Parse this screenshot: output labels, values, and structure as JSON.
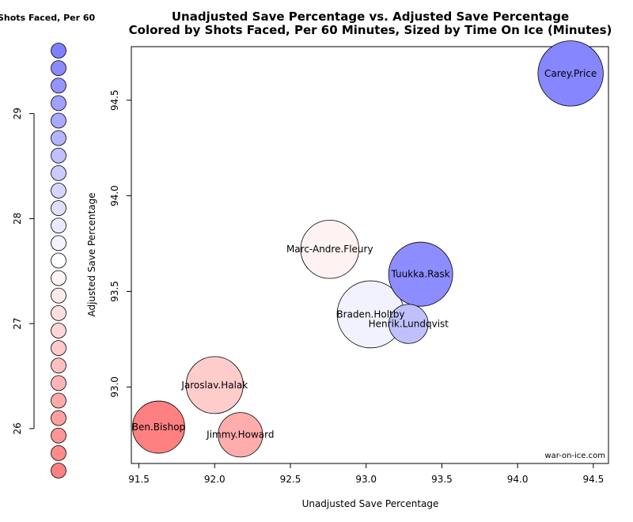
{
  "chart_data": {
    "type": "scatter",
    "title": "Unadjusted Save Percentage vs. Adjusted Save Percentage",
    "subtitle": "Colored by Shots Faced, Per 60 Minutes, Sized by Time On Ice (Minutes)",
    "xlabel": "Unadjusted Save Percentage",
    "ylabel": "Adjusted Save Percentage",
    "xlim": [
      91.45,
      94.6
    ],
    "ylim": [
      92.6,
      94.78
    ],
    "x_ticks": [
      "91.5",
      "92.0",
      "92.5",
      "93.0",
      "93.5",
      "94.0",
      "94.5"
    ],
    "y_ticks": [
      "93.0",
      "93.5",
      "94.0",
      "94.5"
    ],
    "credit": "war-on-ice.com",
    "legend": {
      "title": "Shots Faced, Per 60",
      "ticks": [
        "26",
        "27",
        "28",
        "29"
      ],
      "min": 25.6,
      "max": 29.6,
      "steps": 25,
      "low_color": "#ff8080",
      "mid_color": "#ffffff",
      "high_color": "#8080ff"
    },
    "size_scale": {
      "min_toi": 1800,
      "max_toi": 4200
    },
    "points": [
      {
        "name": "Carey.Price",
        "x": 94.35,
        "y": 94.64,
        "shots_per60": 29.5,
        "toi": 4100
      },
      {
        "name": "Tuukka.Rask",
        "x": 93.36,
        "y": 93.59,
        "shots_per60": 29.4,
        "toi": 4000
      },
      {
        "name": "Marc-Andre.Fleury",
        "x": 92.76,
        "y": 93.72,
        "shots_per60": 27.4,
        "toi": 3500
      },
      {
        "name": "Braden.Holtby",
        "x": 93.03,
        "y": 93.38,
        "shots_per60": 27.8,
        "toi": 4250
      },
      {
        "name": "Henrik.Lundqvist",
        "x": 93.28,
        "y": 93.33,
        "shots_per60": 28.6,
        "toi": 1900
      },
      {
        "name": "Jaroslav.Halak",
        "x": 92.0,
        "y": 93.01,
        "shots_per60": 26.8,
        "toi": 3400
      },
      {
        "name": "Ben.Bishop",
        "x": 91.63,
        "y": 92.79,
        "shots_per60": 25.6,
        "toi": 3000
      },
      {
        "name": "Jimmy.Howard",
        "x": 92.17,
        "y": 92.75,
        "shots_per60": 26.3,
        "toi": 2350
      }
    ]
  }
}
